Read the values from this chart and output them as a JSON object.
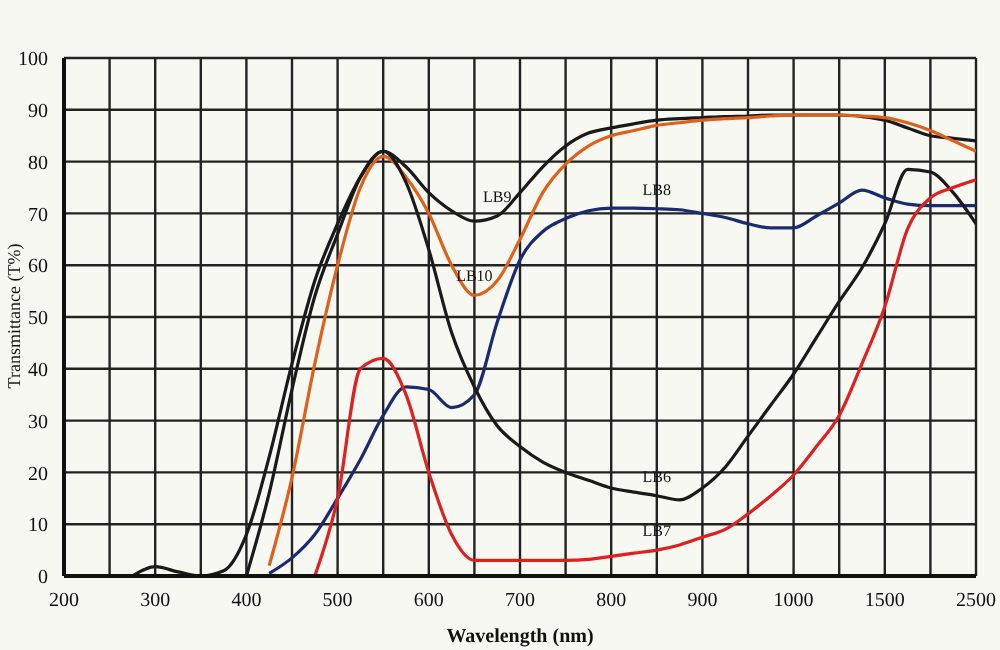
{
  "chart_data": {
    "type": "line",
    "xlabel": "Wavelength (nm)",
    "ylabel": "Transmittance (T%)",
    "categories": [
      "200",
      null,
      null,
      null,
      "300",
      null,
      null,
      null,
      "400",
      null,
      null,
      null,
      "500",
      null,
      null,
      null,
      "600",
      null,
      null,
      null,
      "700",
      null,
      null,
      null,
      "800",
      null,
      null,
      null,
      "900",
      null,
      null,
      null,
      "1000",
      null,
      null,
      null,
      "1500",
      null,
      null,
      null,
      "2500"
    ],
    "ylim": [
      0,
      100
    ],
    "yticks": [
      0,
      10,
      20,
      30,
      40,
      50,
      60,
      70,
      80,
      90,
      100
    ],
    "grid": true,
    "marker": "none",
    "line_style": "solid",
    "series": [
      {
        "name": "LB9",
        "color": "#1a1a1a",
        "values": [
          null,
          null,
          null,
          null,
          null,
          null,
          null,
          null,
          0,
          16,
          36,
          54,
          66,
          77,
          82,
          79,
          74,
          70.5,
          68.5,
          69.5,
          74,
          79,
          83,
          85.5,
          86.5,
          87.3,
          88,
          88.3,
          88.5,
          88.7,
          88.8,
          89,
          89,
          89,
          89,
          88.7,
          88,
          86.5,
          85,
          84.5,
          84
        ]
      },
      {
        "name": "LB10",
        "color": "#e0601a",
        "values": [
          null,
          null,
          null,
          null,
          null,
          null,
          null,
          null,
          null,
          2,
          19,
          41,
          60,
          75,
          81,
          77,
          70,
          60,
          54.2,
          57,
          65,
          74,
          79.5,
          83,
          85,
          86,
          87,
          87.5,
          88,
          88.3,
          88.5,
          88.8,
          89,
          89,
          89,
          88.8,
          88.5,
          87.5,
          86,
          84,
          82
        ]
      },
      {
        "name": "LB8",
        "color": "#1c2a70",
        "values": [
          null,
          null,
          null,
          null,
          null,
          null,
          null,
          null,
          null,
          0.5,
          3.5,
          8,
          15,
          22.5,
          31,
          36.5,
          36,
          32.5,
          35,
          49,
          61,
          66.5,
          69,
          70.5,
          71,
          71,
          70.9,
          70.7,
          70,
          69.2,
          68,
          67.2,
          67.2,
          69.5,
          72,
          74.5,
          73,
          71.8,
          71.5,
          71.5,
          71.5
        ]
      },
      {
        "name": "LB6",
        "color": "#1a1a1a",
        "values": [
          null,
          null,
          null,
          0,
          1.8,
          0.8,
          0,
          1,
          8,
          23,
          41,
          57,
          68,
          77,
          82,
          76,
          63,
          47,
          36.5,
          29,
          25,
          22,
          20,
          18.5,
          17,
          16.2,
          15.5,
          14.7,
          17,
          21,
          27,
          33,
          39,
          46,
          53,
          59.5,
          68,
          78.5,
          78,
          74,
          68
        ]
      },
      {
        "name": "LB7",
        "color": "#e02020",
        "values": [
          null,
          null,
          null,
          null,
          null,
          null,
          null,
          null,
          null,
          null,
          null,
          0,
          15,
          40,
          42,
          35,
          20,
          8,
          3,
          3,
          3,
          3,
          3,
          3.2,
          3.8,
          4.4,
          5,
          6,
          7.5,
          9,
          12,
          15.5,
          19.5,
          25,
          31,
          41,
          52,
          67,
          73,
          75,
          76.5
        ]
      }
    ]
  }
}
